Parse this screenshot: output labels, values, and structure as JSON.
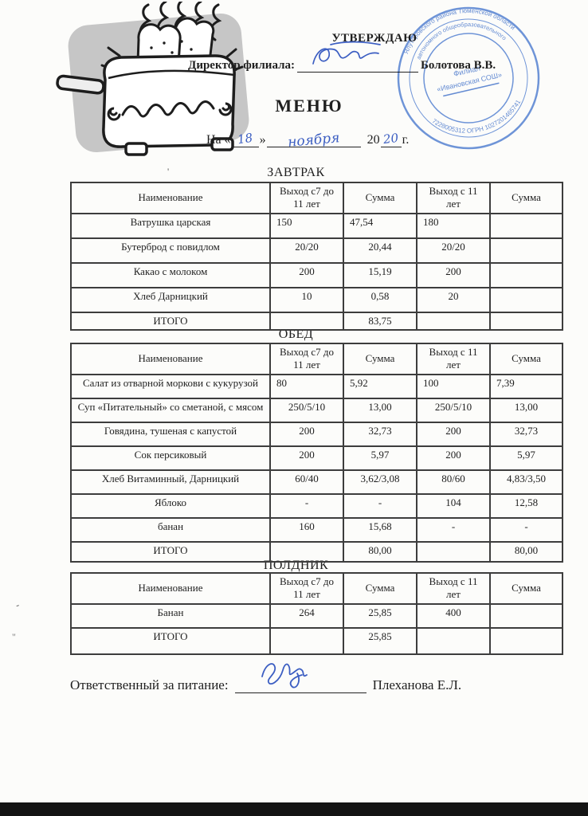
{
  "header": {
    "approve": "УТВЕРЖДАЮ",
    "director_label": "Директор филиала:",
    "director_name": "Болотова В.В.",
    "title": "МЕНЮ",
    "date": {
      "prefix": "На «",
      "day": "18",
      "close_quote": "»",
      "month": "ноября",
      "year_printed": "20",
      "year_hand": "20",
      "suffix": "г."
    }
  },
  "stamp": {
    "ring_outer_top": "Ялуторовского района Тюменской области",
    "ring_inner_top": "автономного общеобразовательного",
    "ring_outer_bottom": "7228005312   ОГРН   1027201465741",
    "center_line1": "Филиал",
    "center_line2": "«Ивановская СОШ»"
  },
  "menu": {
    "columns": [
      "Наименование",
      "Выход с7 до 11 лет",
      "Сумма",
      "Выход с 11 лет",
      "Сумма"
    ],
    "sections": [
      {
        "title": "ЗАВТРАК",
        "rows": [
          {
            "cells": [
              "Ватрушка царская",
              "150",
              "47,54",
              "180",
              ""
            ],
            "num_align": "left"
          },
          {
            "cells": [
              "Бутерброд с повидлом",
              "20/20",
              "20,44",
              "20/20",
              ""
            ],
            "num_align": "center"
          },
          {
            "cells": [
              "Какао с молоком",
              "200",
              "15,19",
              "200",
              ""
            ],
            "num_align": "center"
          },
          {
            "cells": [
              "Хлеб Дарницкий",
              "10",
              "0,58",
              "20",
              ""
            ],
            "num_align": "center"
          },
          {
            "cells": [
              "ИТОГО",
              "",
              "83,75",
              "",
              ""
            ],
            "num_align": "center",
            "total": true
          }
        ]
      },
      {
        "title": "ОБЕД",
        "rows": [
          {
            "cells": [
              "Салат из отварной моркови с кукурузой",
              "80",
              "5,92",
              "100",
              "7,39"
            ],
            "num_align": "left"
          },
          {
            "cells": [
              "Суп «Питательный» со сметаной, с мясом",
              "250/5/10",
              "13,00",
              "250/5/10",
              "13,00"
            ],
            "num_align": "center"
          },
          {
            "cells": [
              "Говядина, тушеная с капустой",
              "200",
              "32,73",
              "200",
              "32,73"
            ],
            "num_align": "center"
          },
          {
            "cells": [
              "Сок персиковый",
              "200",
              "5,97",
              "200",
              "5,97"
            ],
            "num_align": "center"
          },
          {
            "cells": [
              "Хлеб Витаминный, Дарницкий",
              "60/40",
              "3,62/3,08",
              "80/60",
              "4,83/3,50"
            ],
            "num_align": "center"
          },
          {
            "cells": [
              "Яблоко",
              "-",
              "-",
              "104",
              "12,58"
            ],
            "num_align": "center"
          },
          {
            "cells": [
              "банан",
              "160",
              "15,68",
              "-",
              "-"
            ],
            "num_align": "center"
          },
          {
            "cells": [
              "ИТОГО",
              "",
              "80,00",
              "",
              "80,00"
            ],
            "num_align": "center",
            "total": true
          }
        ]
      },
      {
        "title": "ПОЛДНИК",
        "rows": [
          {
            "cells": [
              "Банан",
              "264",
              "25,85",
              "400",
              ""
            ],
            "num_align": "center"
          },
          {
            "cells": [
              "ИТОГО",
              "",
              "25,85",
              "",
              ""
            ],
            "num_align": "center",
            "total": true
          }
        ]
      }
    ]
  },
  "footer": {
    "label": "Ответственный за питание:",
    "name": "Плеханова Е.Л."
  },
  "artifacts": {
    "speck1": "-",
    "speck2": "\"",
    "speck3": "'",
    "speck4": "·"
  },
  "colors": {
    "hand_ink": "#3c5ec2",
    "stamp_blue": "#5b87d8",
    "scan_edge": "#141414",
    "paper": "#fcfcfa"
  }
}
